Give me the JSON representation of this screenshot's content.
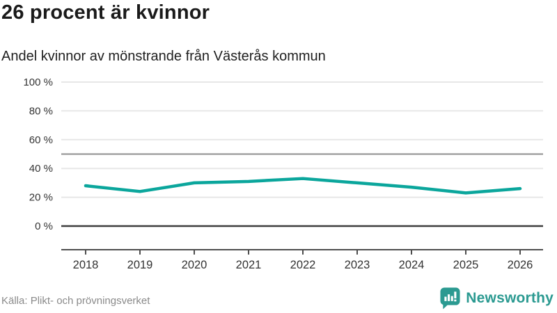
{
  "header": {
    "title": "26 procent är kvinnor",
    "subtitle": "Andel kvinnor av mönstrande från Västerås kommun"
  },
  "chart_data": {
    "type": "line",
    "title": "26 procent är kvinnor",
    "subtitle": "Andel kvinnor av mönstrande från Västerås kommun",
    "series_name": "Andel kvinnor av mönstrande",
    "x": [
      2018,
      2019,
      2020,
      2021,
      2022,
      2023,
      2024,
      2025,
      2026
    ],
    "values": [
      28,
      24,
      30,
      31,
      33,
      30,
      27,
      23,
      26
    ],
    "xtick_labels": [
      "2018",
      "2019",
      "2020",
      "2021",
      "2022",
      "2023",
      "2024",
      "2025",
      "2026"
    ],
    "yticks": [
      0,
      20,
      40,
      60,
      80,
      100
    ],
    "ytick_labels": [
      "0 %",
      "20 %",
      "40 %",
      "60 %",
      "80 %",
      "100 %"
    ],
    "ylim": [
      0,
      100
    ],
    "grid": true,
    "reference_line": 50,
    "legend_position": "none",
    "unit": "%"
  },
  "footer": {
    "source": "Källa: Plikt- och prövningsverket",
    "brand": "Newsworthy"
  },
  "colors": {
    "line": "#0ba69c",
    "brand_teal": "#2b9a91",
    "grid_light": "#e7e7e7",
    "grid_mid": "#8e8e8e",
    "grid_zero": "#3d3d3d",
    "axis": "#4d4d4d",
    "tick_text": "#333333",
    "source_text": "#8a8a8a",
    "title_text": "#1a1a1a"
  }
}
